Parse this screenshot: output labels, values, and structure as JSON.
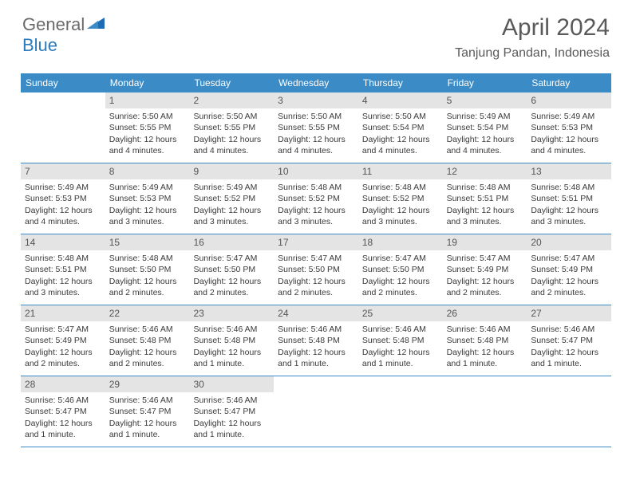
{
  "logo": {
    "text1": "General",
    "text2": "Blue"
  },
  "title": "April 2024",
  "location": "Tanjung Pandan, Indonesia",
  "colors": {
    "header_bar": "#3b8bc6",
    "daynum_bg": "#e4e4e4",
    "text": "#3a3a3a",
    "title_text": "#5a5a5a",
    "logo_blue": "#2b7bbf"
  },
  "weekdays": [
    "Sunday",
    "Monday",
    "Tuesday",
    "Wednesday",
    "Thursday",
    "Friday",
    "Saturday"
  ],
  "weeks": [
    [
      {
        "empty": true
      },
      {
        "n": "1",
        "sr": "5:50 AM",
        "ss": "5:55 PM",
        "dl": "12 hours and 4 minutes."
      },
      {
        "n": "2",
        "sr": "5:50 AM",
        "ss": "5:55 PM",
        "dl": "12 hours and 4 minutes."
      },
      {
        "n": "3",
        "sr": "5:50 AM",
        "ss": "5:55 PM",
        "dl": "12 hours and 4 minutes."
      },
      {
        "n": "4",
        "sr": "5:50 AM",
        "ss": "5:54 PM",
        "dl": "12 hours and 4 minutes."
      },
      {
        "n": "5",
        "sr": "5:49 AM",
        "ss": "5:54 PM",
        "dl": "12 hours and 4 minutes."
      },
      {
        "n": "6",
        "sr": "5:49 AM",
        "ss": "5:53 PM",
        "dl": "12 hours and 4 minutes."
      }
    ],
    [
      {
        "n": "7",
        "sr": "5:49 AM",
        "ss": "5:53 PM",
        "dl": "12 hours and 4 minutes."
      },
      {
        "n": "8",
        "sr": "5:49 AM",
        "ss": "5:53 PM",
        "dl": "12 hours and 3 minutes."
      },
      {
        "n": "9",
        "sr": "5:49 AM",
        "ss": "5:52 PM",
        "dl": "12 hours and 3 minutes."
      },
      {
        "n": "10",
        "sr": "5:48 AM",
        "ss": "5:52 PM",
        "dl": "12 hours and 3 minutes."
      },
      {
        "n": "11",
        "sr": "5:48 AM",
        "ss": "5:52 PM",
        "dl": "12 hours and 3 minutes."
      },
      {
        "n": "12",
        "sr": "5:48 AM",
        "ss": "5:51 PM",
        "dl": "12 hours and 3 minutes."
      },
      {
        "n": "13",
        "sr": "5:48 AM",
        "ss": "5:51 PM",
        "dl": "12 hours and 3 minutes."
      }
    ],
    [
      {
        "n": "14",
        "sr": "5:48 AM",
        "ss": "5:51 PM",
        "dl": "12 hours and 3 minutes."
      },
      {
        "n": "15",
        "sr": "5:48 AM",
        "ss": "5:50 PM",
        "dl": "12 hours and 2 minutes."
      },
      {
        "n": "16",
        "sr": "5:47 AM",
        "ss": "5:50 PM",
        "dl": "12 hours and 2 minutes."
      },
      {
        "n": "17",
        "sr": "5:47 AM",
        "ss": "5:50 PM",
        "dl": "12 hours and 2 minutes."
      },
      {
        "n": "18",
        "sr": "5:47 AM",
        "ss": "5:50 PM",
        "dl": "12 hours and 2 minutes."
      },
      {
        "n": "19",
        "sr": "5:47 AM",
        "ss": "5:49 PM",
        "dl": "12 hours and 2 minutes."
      },
      {
        "n": "20",
        "sr": "5:47 AM",
        "ss": "5:49 PM",
        "dl": "12 hours and 2 minutes."
      }
    ],
    [
      {
        "n": "21",
        "sr": "5:47 AM",
        "ss": "5:49 PM",
        "dl": "12 hours and 2 minutes."
      },
      {
        "n": "22",
        "sr": "5:46 AM",
        "ss": "5:48 PM",
        "dl": "12 hours and 2 minutes."
      },
      {
        "n": "23",
        "sr": "5:46 AM",
        "ss": "5:48 PM",
        "dl": "12 hours and 1 minute."
      },
      {
        "n": "24",
        "sr": "5:46 AM",
        "ss": "5:48 PM",
        "dl": "12 hours and 1 minute."
      },
      {
        "n": "25",
        "sr": "5:46 AM",
        "ss": "5:48 PM",
        "dl": "12 hours and 1 minute."
      },
      {
        "n": "26",
        "sr": "5:46 AM",
        "ss": "5:48 PM",
        "dl": "12 hours and 1 minute."
      },
      {
        "n": "27",
        "sr": "5:46 AM",
        "ss": "5:47 PM",
        "dl": "12 hours and 1 minute."
      }
    ],
    [
      {
        "n": "28",
        "sr": "5:46 AM",
        "ss": "5:47 PM",
        "dl": "12 hours and 1 minute."
      },
      {
        "n": "29",
        "sr": "5:46 AM",
        "ss": "5:47 PM",
        "dl": "12 hours and 1 minute."
      },
      {
        "n": "30",
        "sr": "5:46 AM",
        "ss": "5:47 PM",
        "dl": "12 hours and 1 minute."
      },
      {
        "empty": true
      },
      {
        "empty": true
      },
      {
        "empty": true
      },
      {
        "empty": true
      }
    ]
  ],
  "labels": {
    "sunrise": "Sunrise:",
    "sunset": "Sunset:",
    "daylight": "Daylight:"
  }
}
